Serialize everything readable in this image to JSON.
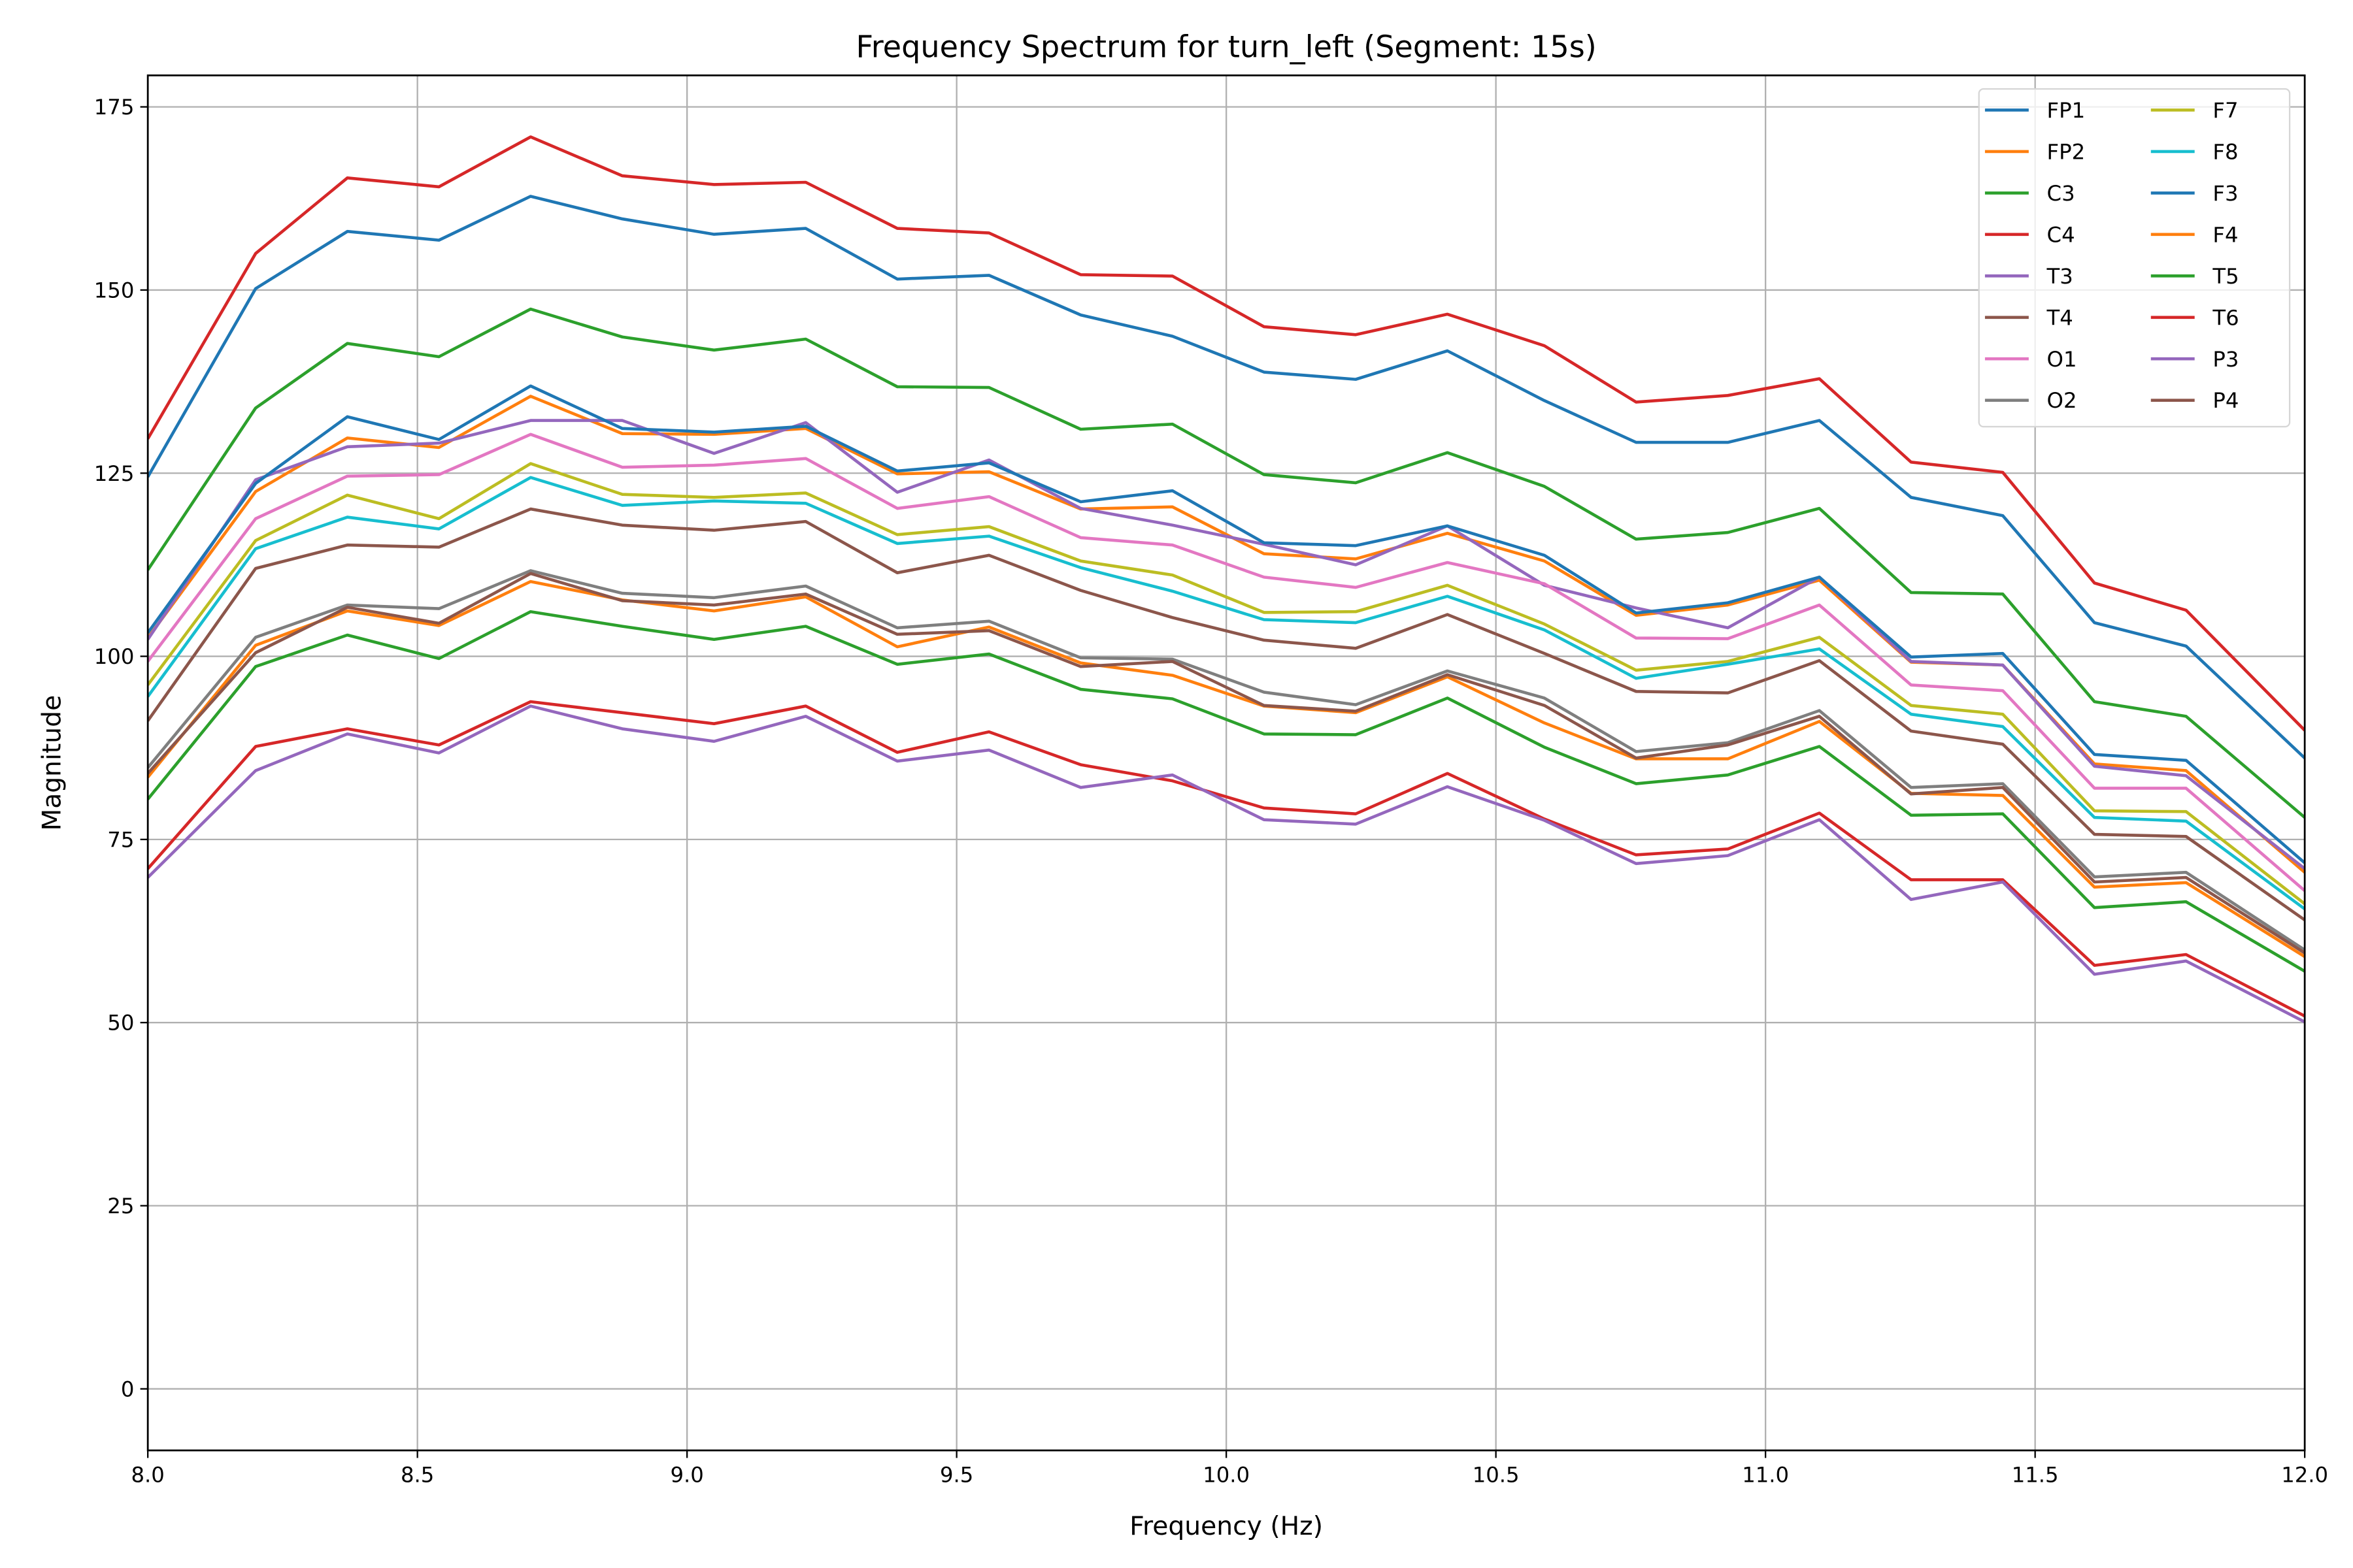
{
  "chart_data": {
    "type": "line",
    "title": "Frequency Spectrum for turn_left (Segment: 15s)",
    "xlabel": "Frequency (Hz)",
    "ylabel": "Magnitude",
    "xlim": [
      8.0,
      12.0
    ],
    "ylim": [
      -8.4,
      179.3
    ],
    "xticks": [
      "8.0",
      "8.5",
      "9.0",
      "9.5",
      "10.0",
      "10.5",
      "11.0",
      "11.5",
      "12.0"
    ],
    "yticks": [
      "0",
      "25",
      "50",
      "75",
      "100",
      "125",
      "150",
      "175"
    ],
    "grid": true,
    "legend_position": "top-right",
    "legend_columns": 2,
    "x": [
      8.0,
      8.2,
      8.37,
      8.54,
      8.71,
      8.88,
      9.05,
      9.22,
      9.39,
      9.56,
      9.73,
      9.9,
      10.07,
      10.24,
      10.41,
      10.59,
      10.76,
      10.93,
      11.1,
      11.27,
      11.44,
      11.61,
      11.78,
      12.0
    ],
    "series": [
      {
        "name": "FP1",
        "color": "#1f77b4",
        "values": [
          124.5,
          150.2,
          158.0,
          156.8,
          162.8,
          159.7,
          157.6,
          158.4,
          151.5,
          152.0,
          146.6,
          143.7,
          138.8,
          137.8,
          141.7,
          134.9,
          129.2,
          129.2,
          132.2,
          121.7,
          119.2,
          104.6,
          101.4,
          86.1
        ]
      },
      {
        "name": "FP2",
        "color": "#ff7f0e",
        "values": [
          102.5,
          122.5,
          129.8,
          128.5,
          135.5,
          130.4,
          130.3,
          131.1,
          124.9,
          125.2,
          120.1,
          120.4,
          114.0,
          113.3,
          116.8,
          113.0,
          105.6,
          107.0,
          110.4,
          99.2,
          98.8,
          85.3,
          84.4,
          70.5
        ]
      },
      {
        "name": "C3",
        "color": "#2ca02c",
        "values": [
          111.8,
          133.9,
          142.7,
          140.9,
          147.4,
          143.6,
          141.8,
          143.3,
          136.8,
          136.7,
          131.0,
          131.7,
          124.8,
          123.7,
          127.8,
          123.2,
          116.0,
          116.9,
          120.2,
          108.7,
          108.5,
          93.8,
          91.8,
          78.0
        ]
      },
      {
        "name": "C4",
        "color": "#d62728",
        "values": [
          129.7,
          155.0,
          165.3,
          164.1,
          170.9,
          165.6,
          164.4,
          164.7,
          158.4,
          157.8,
          152.1,
          151.9,
          145.0,
          143.9,
          146.7,
          142.4,
          134.7,
          135.6,
          137.9,
          126.5,
          125.1,
          110.0,
          106.3,
          89.9
        ]
      },
      {
        "name": "T3",
        "color": "#9467bd",
        "values": [
          102.3,
          124.1,
          128.6,
          129.1,
          132.2,
          132.2,
          127.7,
          131.9,
          122.4,
          126.8,
          120.2,
          117.9,
          115.3,
          112.5,
          117.8,
          109.7,
          106.6,
          103.9,
          110.8,
          99.3,
          98.8,
          85.0,
          83.7,
          71.0
        ]
      },
      {
        "name": "T4",
        "color": "#8c564b",
        "values": [
          91.2,
          112.0,
          115.2,
          114.9,
          120.1,
          117.9,
          117.2,
          118.4,
          111.4,
          113.8,
          109.0,
          105.3,
          102.2,
          101.1,
          105.7,
          100.4,
          95.2,
          95.0,
          99.4,
          89.8,
          88.0,
          75.7,
          75.4,
          64.0
        ]
      },
      {
        "name": "O1",
        "color": "#e377c2",
        "values": [
          99.3,
          118.8,
          124.6,
          124.8,
          130.3,
          125.8,
          126.1,
          127.0,
          120.2,
          121.8,
          116.2,
          115.2,
          110.8,
          109.4,
          112.8,
          109.9,
          102.5,
          102.4,
          107.0,
          96.1,
          95.3,
          82.0,
          82.0,
          68.0
        ]
      },
      {
        "name": "O2",
        "color": "#7f7f7f",
        "values": [
          84.8,
          102.6,
          107.0,
          106.5,
          111.7,
          108.6,
          108.0,
          109.6,
          103.9,
          104.8,
          99.8,
          99.6,
          95.1,
          93.4,
          98.0,
          94.3,
          87.0,
          88.2,
          92.6,
          82.1,
          82.6,
          69.9,
          70.5,
          59.9
        ]
      },
      {
        "name": "F7",
        "color": "#bcbd22",
        "values": [
          96.1,
          115.8,
          122.0,
          118.8,
          126.3,
          122.1,
          121.7,
          122.3,
          116.6,
          117.7,
          113.0,
          111.1,
          106.0,
          106.1,
          109.7,
          104.4,
          98.1,
          99.3,
          102.6,
          93.3,
          92.1,
          78.9,
          78.8,
          66.2
        ]
      },
      {
        "name": "F8",
        "color": "#17becf",
        "values": [
          94.5,
          114.7,
          119.0,
          117.4,
          124.4,
          120.6,
          121.2,
          120.9,
          115.4,
          116.4,
          112.1,
          108.9,
          105.0,
          104.6,
          108.2,
          103.6,
          97.0,
          98.9,
          101.0,
          92.1,
          90.4,
          78.0,
          77.5,
          65.5
        ]
      },
      {
        "name": "F3",
        "color": "#1f77b4",
        "values": [
          103.2,
          123.6,
          132.7,
          129.6,
          136.9,
          131.1,
          130.6,
          131.4,
          125.3,
          126.4,
          121.1,
          122.6,
          115.5,
          115.1,
          117.8,
          113.8,
          105.9,
          107.3,
          110.8,
          99.9,
          100.4,
          86.6,
          85.8,
          71.8
        ]
      },
      {
        "name": "F4",
        "color": "#ff7f0e",
        "values": [
          83.5,
          101.5,
          106.2,
          104.2,
          110.2,
          107.7,
          106.2,
          108.1,
          101.3,
          104.0,
          99.1,
          97.4,
          93.2,
          92.3,
          97.2,
          90.9,
          86.0,
          86.0,
          91.1,
          81.3,
          81.0,
          68.5,
          69.1,
          59.0
        ]
      },
      {
        "name": "T5",
        "color": "#2ca02c",
        "values": [
          80.5,
          98.6,
          102.9,
          99.7,
          106.1,
          104.1,
          102.3,
          104.1,
          98.9,
          100.3,
          95.5,
          94.2,
          89.4,
          89.3,
          94.3,
          87.6,
          82.6,
          83.8,
          87.7,
          78.3,
          78.5,
          65.7,
          66.5,
          57.0
        ]
      },
      {
        "name": "T6",
        "color": "#d62728",
        "values": [
          71.0,
          87.7,
          90.1,
          87.9,
          93.8,
          92.3,
          90.8,
          93.2,
          86.9,
          89.7,
          85.2,
          83.0,
          79.3,
          78.5,
          84.0,
          77.8,
          72.9,
          73.7,
          78.6,
          69.5,
          69.5,
          57.8,
          59.3,
          50.9
        ]
      },
      {
        "name": "P3",
        "color": "#9467bd",
        "values": [
          69.8,
          84.4,
          89.4,
          86.8,
          93.2,
          90.1,
          88.4,
          91.8,
          85.7,
          87.2,
          82.1,
          83.8,
          77.7,
          77.1,
          82.2,
          77.6,
          71.7,
          72.8,
          77.7,
          66.8,
          69.2,
          56.6,
          58.4,
          50.1
        ]
      },
      {
        "name": "P4",
        "color": "#8c564b",
        "values": [
          84.0,
          100.5,
          106.7,
          104.5,
          111.3,
          107.6,
          107.0,
          108.5,
          103.0,
          103.5,
          98.6,
          99.3,
          93.3,
          92.5,
          97.5,
          93.3,
          86.1,
          87.9,
          91.8,
          81.2,
          82.1,
          69.2,
          69.8,
          59.5
        ]
      }
    ]
  }
}
